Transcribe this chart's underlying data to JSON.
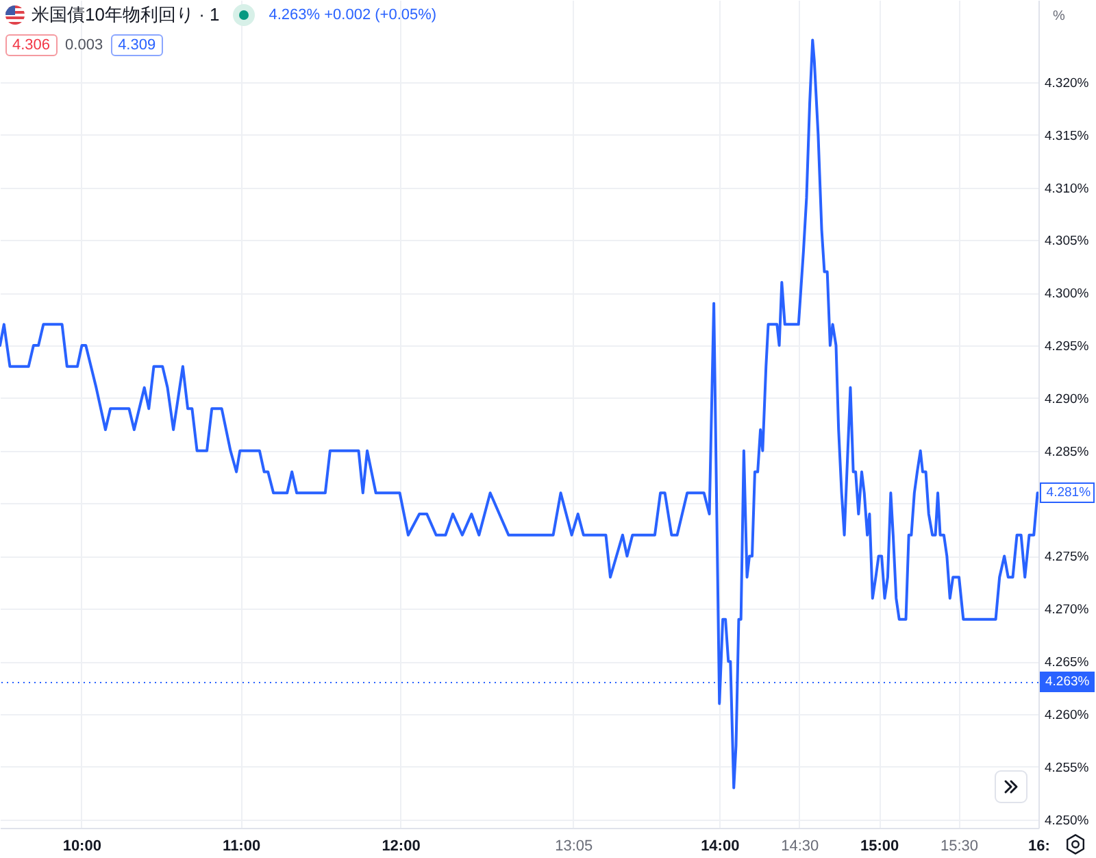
{
  "chart_data": {
    "type": "line",
    "title": "米国債10年物利回り · 1",
    "subtitle": "4.263% +0.002 (+0.05%)",
    "ylabel": "%",
    "annotations": [
      "4.306",
      "0.003",
      "4.309",
      {
        "text": "4.281%",
        "x": 15.994,
        "y": 4.281
      }
    ],
    "x": [
      9.49,
      9.515,
      9.552,
      9.669,
      9.7,
      9.731,
      9.762,
      9.879,
      9.91,
      9.975,
      10.003,
      10.028,
      10.093,
      10.151,
      10.182,
      10.299,
      10.331,
      10.395,
      10.423,
      10.454,
      10.509,
      10.54,
      10.577,
      10.636,
      10.667,
      10.694,
      10.725,
      10.787,
      10.818,
      10.88,
      10.935,
      10.972,
      10.994,
      11.117,
      11.146,
      11.17,
      11.204,
      11.29,
      11.32,
      11.35,
      11.529,
      11.559,
      11.738,
      11.765,
      11.792,
      11.846,
      11.996,
      12.049,
      12.119,
      12.166,
      12.224,
      12.283,
      12.329,
      12.388,
      12.446,
      12.493,
      12.563,
      12.678,
      12.958,
      13.005,
      13.074,
      13.113,
      13.148,
      13.288,
      13.316,
      13.393,
      13.421,
      13.455,
      13.595,
      13.63,
      13.658,
      13.7,
      13.735,
      13.798,
      13.903,
      13.937,
      13.965,
      14.0,
      14.021,
      14.038,
      14.056,
      14.069,
      14.09,
      14.104,
      14.121,
      14.135,
      14.153,
      14.173,
      14.188,
      14.205,
      14.222,
      14.24,
      14.257,
      14.271,
      14.292,
      14.306,
      14.361,
      14.375,
      14.391,
      14.41,
      14.496,
      14.527,
      14.546,
      14.566,
      14.584,
      14.595,
      14.619,
      14.641,
      14.658,
      14.676,
      14.694,
      14.71,
      14.731,
      14.747,
      14.766,
      14.783,
      14.821,
      14.839,
      14.854,
      14.872,
      14.892,
      14.908,
      14.927,
      14.941,
      14.96,
      14.98,
      14.998,
      15.017,
      15.036,
      15.055,
      15.074,
      15.089,
      15.108,
      15.127,
      15.169,
      15.187,
      15.203,
      15.222,
      15.24,
      15.26,
      15.274,
      15.294,
      15.312,
      15.335,
      15.354,
      15.369,
      15.384,
      15.407,
      15.426,
      15.445,
      15.464,
      15.502,
      15.529,
      15.732,
      15.756,
      15.786,
      15.81,
      15.839,
      15.865,
      15.891,
      15.915,
      15.942,
      15.971,
      15.994
    ],
    "series": [
      {
        "color": "#2962ff",
        "values": [
          4.295,
          4.297,
          4.293,
          4.293,
          4.295,
          4.295,
          4.297,
          4.297,
          4.293,
          4.293,
          4.295,
          4.295,
          4.291,
          4.287,
          4.289,
          4.289,
          4.287,
          4.291,
          4.289,
          4.293,
          4.293,
          4.291,
          4.287,
          4.293,
          4.289,
          4.289,
          4.285,
          4.285,
          4.289,
          4.289,
          4.285,
          4.283,
          4.285,
          4.285,
          4.283,
          4.283,
          4.281,
          4.281,
          4.283,
          4.281,
          4.281,
          4.285,
          4.285,
          4.281,
          4.285,
          4.281,
          4.281,
          4.277,
          4.279,
          4.279,
          4.277,
          4.277,
          4.279,
          4.277,
          4.279,
          4.277,
          4.281,
          4.277,
          4.277,
          4.281,
          4.277,
          4.279,
          4.277,
          4.277,
          4.273,
          4.277,
          4.275,
          4.277,
          4.277,
          4.281,
          4.281,
          4.277,
          4.277,
          4.281,
          4.281,
          4.279,
          4.299,
          4.261,
          4.269,
          4.269,
          4.265,
          4.265,
          4.253,
          4.257,
          4.269,
          4.269,
          4.285,
          4.273,
          4.275,
          4.275,
          4.283,
          4.283,
          4.287,
          4.285,
          4.293,
          4.297,
          4.297,
          4.295,
          4.301,
          4.297,
          4.297,
          4.304,
          4.309,
          4.318,
          4.324,
          4.322,
          4.315,
          4.306,
          4.302,
          4.302,
          4.295,
          4.297,
          4.295,
          4.287,
          4.281,
          4.277,
          4.291,
          4.283,
          4.283,
          4.279,
          4.283,
          4.281,
          4.277,
          4.279,
          4.271,
          4.273,
          4.275,
          4.275,
          4.271,
          4.273,
          4.281,
          4.277,
          4.271,
          4.269,
          4.269,
          4.277,
          4.277,
          4.281,
          4.283,
          4.285,
          4.283,
          4.283,
          4.279,
          4.277,
          4.277,
          4.281,
          4.277,
          4.277,
          4.275,
          4.271,
          4.273,
          4.273,
          4.269,
          4.269,
          4.273,
          4.275,
          4.273,
          4.273,
          4.277,
          4.277,
          4.273,
          4.277,
          4.277,
          4.281
        ]
      }
    ],
    "xlim": [
      9.49,
      16.0
    ],
    "xticks": [
      {
        "value": 10,
        "label": "10:00"
      },
      {
        "value": 11,
        "label": "11:00"
      },
      {
        "value": 12,
        "label": "12:00"
      },
      {
        "value": 13.0833,
        "label": "13:05"
      },
      {
        "value": 14,
        "label": "14:00"
      },
      {
        "value": 14.5,
        "label": "14:30"
      },
      {
        "value": 15,
        "label": "15:00"
      },
      {
        "value": 15.5,
        "label": "15:30"
      },
      {
        "value": 16,
        "label": "16:"
      }
    ],
    "ylim": [
      4.2492,
      4.3278
    ],
    "yticks": [
      {
        "value": 4.25,
        "label": "4.250%"
      },
      {
        "value": 4.255,
        "label": "4.255%"
      },
      {
        "value": 4.26,
        "label": "4.260%"
      },
      {
        "value": 4.265,
        "label": "4.265%"
      },
      {
        "value": 4.27,
        "label": "4.270%"
      },
      {
        "value": 4.275,
        "label": "4.275%"
      },
      {
        "value": 4.28,
        "label": null
      },
      {
        "value": 4.285,
        "label": "4.285%"
      },
      {
        "value": 4.29,
        "label": "4.290%"
      },
      {
        "value": 4.295,
        "label": "4.295%"
      },
      {
        "value": 4.3,
        "label": "4.300%"
      },
      {
        "value": 4.305,
        "label": "4.305%"
      },
      {
        "value": 4.31,
        "label": "4.310%"
      },
      {
        "value": 4.315,
        "label": "4.315%"
      },
      {
        "value": 4.32,
        "label": "4.320%"
      }
    ],
    "grid": true,
    "ref_lines": [
      {
        "axis": "y",
        "value": 4.263,
        "label": "4.263%",
        "color": "#2962ff",
        "line_style": "dotted"
      }
    ]
  }
}
